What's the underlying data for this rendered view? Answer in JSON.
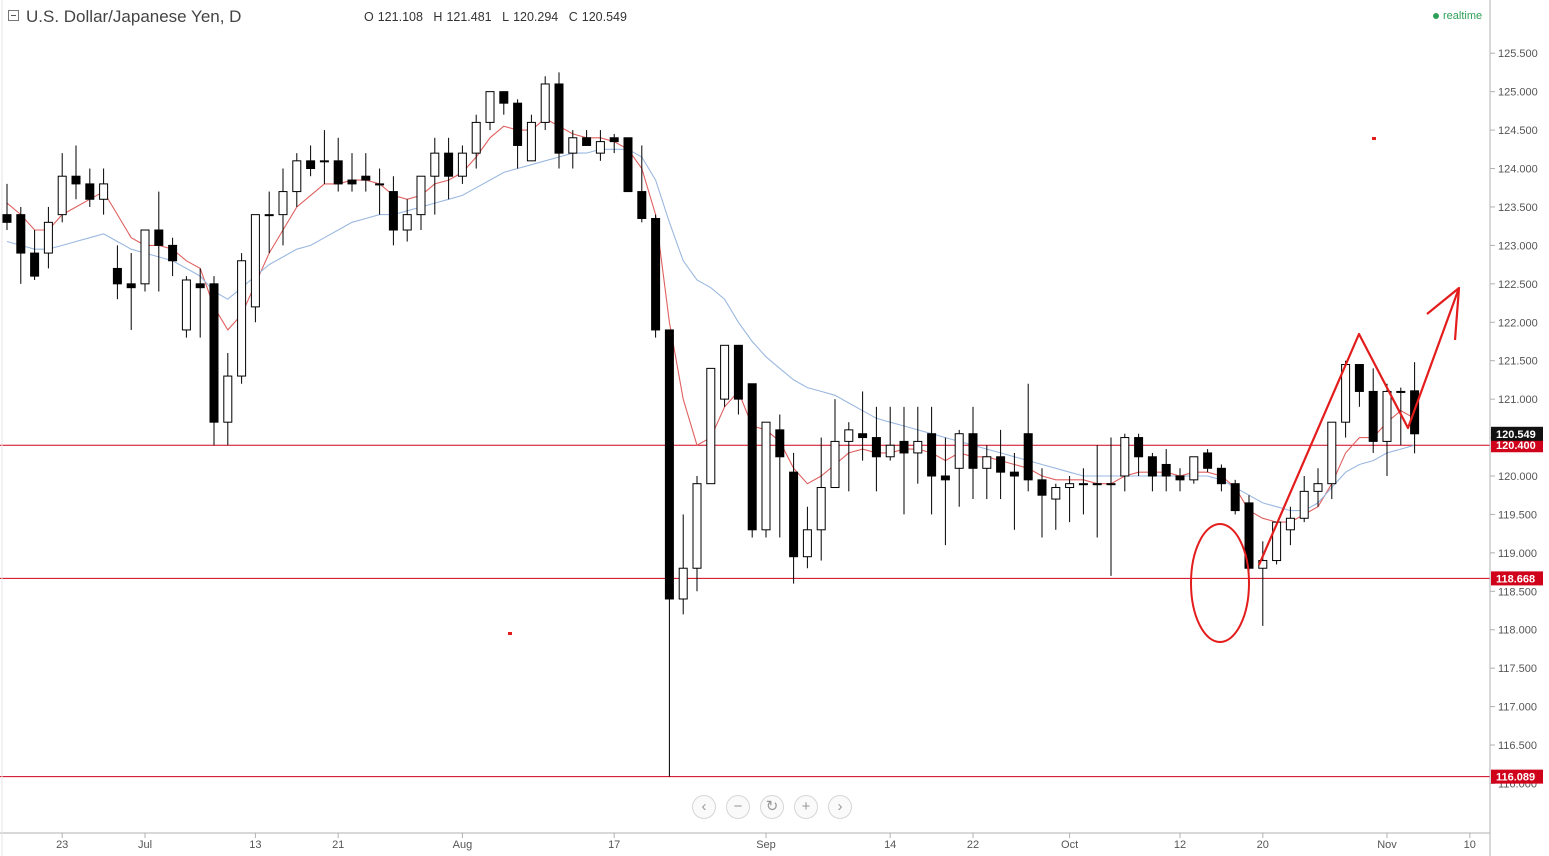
{
  "header": {
    "title": "U.S. Dollar/Japanese Yen, D",
    "ohlc": [
      {
        "key": "O",
        "value": "121.108"
      },
      {
        "key": "H",
        "value": "121.481"
      },
      {
        "key": "L",
        "value": "120.294"
      },
      {
        "key": "C",
        "value": "120.549"
      }
    ],
    "realtime_label": "realtime"
  },
  "nav_buttons": [
    {
      "name": "scroll-left-button",
      "glyph": "‹"
    },
    {
      "name": "zoom-out-button",
      "glyph": "−"
    },
    {
      "name": "reset-button",
      "glyph": "↻"
    },
    {
      "name": "zoom-in-button",
      "glyph": "+"
    },
    {
      "name": "scroll-right-button",
      "glyph": "›"
    }
  ],
  "chart_data": {
    "type": "candlestick",
    "title": "U.S. Dollar/Japanese Yen, D",
    "ylim": [
      115.85,
      125.75
    ],
    "y_ticks": [
      116.0,
      116.5,
      117.0,
      117.5,
      118.0,
      118.5,
      119.0,
      119.5,
      120.0,
      120.5,
      121.0,
      121.5,
      122.0,
      122.5,
      123.0,
      123.5,
      124.0,
      124.5,
      125.0,
      125.5
    ],
    "x_tick_labels": [
      {
        "label": "23",
        "bar": 4
      },
      {
        "label": "Jul",
        "bar": 10
      },
      {
        "label": "13",
        "bar": 18
      },
      {
        "label": "21",
        "bar": 24
      },
      {
        "label": "Aug",
        "bar": 33
      },
      {
        "label": "17",
        "bar": 44
      },
      {
        "label": "Sep",
        "bar": 55
      },
      {
        "label": "14",
        "bar": 64
      },
      {
        "label": "22",
        "bar": 70
      },
      {
        "label": "Oct",
        "bar": 77
      },
      {
        "label": "12",
        "bar": 85
      },
      {
        "label": "20",
        "bar": 91
      },
      {
        "label": "Nov",
        "bar": 100
      },
      {
        "label": "10",
        "bar": 106
      }
    ],
    "candles": [
      [
        123.4,
        123.8,
        123.2,
        123.3
      ],
      [
        123.4,
        123.5,
        122.5,
        122.9
      ],
      [
        122.9,
        123.2,
        122.55,
        122.6
      ],
      [
        122.9,
        123.5,
        122.7,
        123.3
      ],
      [
        123.4,
        124.2,
        123.3,
        123.9
      ],
      [
        123.9,
        124.3,
        123.6,
        123.8
      ],
      [
        123.8,
        124.0,
        123.5,
        123.6
      ],
      [
        123.6,
        124.0,
        123.4,
        123.8
      ],
      [
        122.7,
        123.0,
        122.3,
        122.5
      ],
      [
        122.5,
        122.9,
        121.9,
        122.45
      ],
      [
        122.5,
        123.2,
        122.4,
        123.2
      ],
      [
        123.2,
        123.7,
        122.4,
        123.0
      ],
      [
        123.0,
        123.1,
        122.6,
        122.8
      ],
      [
        121.9,
        122.6,
        121.8,
        122.55
      ],
      [
        122.5,
        122.7,
        121.8,
        122.45
      ],
      [
        122.5,
        122.6,
        120.4,
        120.7
      ],
      [
        120.7,
        121.6,
        120.4,
        121.3
      ],
      [
        121.3,
        122.9,
        121.2,
        122.8
      ],
      [
        122.2,
        123.4,
        122.0,
        123.4
      ],
      [
        123.4,
        123.7,
        122.9,
        123.4
      ],
      [
        123.4,
        124.0,
        123.0,
        123.7
      ],
      [
        123.7,
        124.2,
        123.5,
        124.1
      ],
      [
        124.1,
        124.3,
        123.9,
        124.0
      ],
      [
        124.1,
        124.5,
        123.8,
        124.1
      ],
      [
        124.1,
        124.4,
        123.7,
        123.8
      ],
      [
        123.85,
        124.2,
        123.7,
        123.8
      ],
      [
        123.9,
        124.2,
        123.7,
        123.85
      ],
      [
        123.8,
        124.0,
        123.4,
        123.8
      ],
      [
        123.7,
        123.9,
        123.0,
        123.2
      ],
      [
        123.2,
        123.6,
        123.05,
        123.4
      ],
      [
        123.4,
        123.9,
        123.2,
        123.9
      ],
      [
        123.9,
        124.4,
        123.4,
        124.2
      ],
      [
        124.2,
        124.4,
        123.6,
        123.9
      ],
      [
        123.9,
        124.3,
        123.8,
        124.2
      ],
      [
        124.2,
        124.7,
        124.0,
        124.6
      ],
      [
        124.6,
        125.0,
        124.5,
        125.0
      ],
      [
        125.0,
        125.0,
        124.7,
        124.85
      ],
      [
        124.85,
        124.9,
        124.0,
        124.3
      ],
      [
        124.1,
        124.7,
        124.1,
        124.6
      ],
      [
        124.6,
        125.2,
        124.5,
        125.1
      ],
      [
        125.1,
        125.25,
        124.0,
        124.2
      ],
      [
        124.2,
        124.5,
        124.0,
        124.4
      ],
      [
        124.4,
        124.5,
        124.3,
        124.3
      ],
      [
        124.2,
        124.5,
        124.1,
        124.35
      ],
      [
        124.4,
        124.45,
        124.2,
        124.35
      ],
      [
        124.4,
        124.4,
        123.7,
        123.7
      ],
      [
        123.7,
        124.3,
        123.3,
        123.35
      ],
      [
        123.35,
        123.4,
        121.8,
        121.9
      ],
      [
        121.9,
        121.9,
        116.09,
        118.4
      ],
      [
        118.4,
        119.5,
        118.2,
        118.8
      ],
      [
        118.8,
        120.0,
        118.5,
        119.9
      ],
      [
        119.9,
        121.4,
        119.9,
        121.4
      ],
      [
        121.0,
        121.7,
        120.9,
        121.7
      ],
      [
        121.7,
        121.7,
        120.8,
        121.0
      ],
      [
        121.2,
        121.2,
        119.2,
        119.3
      ],
      [
        119.3,
        120.7,
        119.2,
        120.7
      ],
      [
        120.6,
        120.8,
        119.2,
        120.25
      ],
      [
        120.05,
        120.3,
        118.6,
        118.95
      ],
      [
        118.95,
        119.6,
        118.8,
        119.3
      ],
      [
        119.3,
        120.5,
        118.9,
        119.85
      ],
      [
        119.85,
        121.0,
        119.85,
        120.45
      ],
      [
        120.45,
        120.7,
        119.8,
        120.6
      ],
      [
        120.55,
        121.1,
        120.2,
        120.5
      ],
      [
        120.5,
        120.9,
        119.8,
        120.25
      ],
      [
        120.25,
        120.9,
        120.2,
        120.4
      ],
      [
        120.45,
        120.9,
        119.5,
        120.3
      ],
      [
        120.3,
        120.9,
        119.9,
        120.45
      ],
      [
        120.55,
        120.9,
        119.5,
        120.0
      ],
      [
        120.0,
        120.5,
        119.1,
        119.95
      ],
      [
        120.1,
        120.6,
        119.6,
        120.55
      ],
      [
        120.55,
        120.9,
        119.7,
        120.1
      ],
      [
        120.1,
        120.4,
        119.7,
        120.25
      ],
      [
        120.25,
        120.6,
        119.7,
        120.05
      ],
      [
        120.05,
        120.3,
        119.3,
        120.0
      ],
      [
        120.55,
        121.2,
        119.8,
        119.95
      ],
      [
        119.95,
        120.1,
        119.2,
        119.75
      ],
      [
        119.7,
        119.9,
        119.3,
        119.85
      ],
      [
        119.85,
        120.0,
        119.4,
        119.9
      ],
      [
        119.9,
        120.1,
        119.5,
        119.9
      ],
      [
        119.9,
        120.4,
        119.2,
        119.9
      ],
      [
        119.9,
        120.5,
        118.7,
        119.9
      ],
      [
        120.0,
        120.55,
        119.8,
        120.5
      ],
      [
        120.5,
        120.55,
        120.0,
        120.25
      ],
      [
        120.25,
        120.3,
        119.8,
        120.0
      ],
      [
        120.15,
        120.35,
        119.8,
        120.0
      ],
      [
        120.0,
        120.1,
        119.8,
        119.95
      ],
      [
        119.95,
        120.25,
        119.9,
        120.25
      ],
      [
        120.3,
        120.35,
        120.05,
        120.1
      ],
      [
        120.1,
        120.15,
        119.8,
        119.9
      ],
      [
        119.9,
        119.95,
        119.5,
        119.55
      ],
      [
        119.65,
        119.75,
        118.6,
        118.8
      ],
      [
        118.8,
        119.15,
        118.05,
        118.9
      ],
      [
        118.9,
        119.4,
        118.85,
        119.4
      ],
      [
        119.3,
        119.6,
        119.1,
        119.45
      ],
      [
        119.45,
        120.0,
        119.4,
        119.8
      ],
      [
        119.8,
        120.1,
        119.6,
        119.9
      ],
      [
        119.9,
        120.7,
        119.7,
        120.7
      ],
      [
        120.7,
        121.5,
        120.5,
        121.45
      ],
      [
        121.45,
        121.45,
        120.9,
        121.1
      ],
      [
        121.1,
        121.4,
        120.3,
        120.45
      ],
      [
        120.45,
        121.2,
        120.0,
        121.1
      ],
      [
        121.1,
        121.15,
        120.4,
        121.1
      ],
      [
        121.108,
        121.481,
        120.294,
        120.549
      ]
    ],
    "series": [
      {
        "name": "",
        "color": "#e06060",
        "values": [
          123.55,
          123.4,
          123.2,
          123.2,
          123.4,
          123.5,
          123.6,
          123.7,
          123.4,
          123.1,
          123.0,
          123.0,
          122.95,
          122.8,
          122.7,
          122.2,
          121.9,
          122.1,
          122.5,
          122.9,
          123.2,
          123.5,
          123.65,
          123.8,
          123.8,
          123.85,
          123.85,
          123.8,
          123.65,
          123.6,
          123.65,
          123.8,
          123.85,
          123.95,
          124.15,
          124.4,
          124.55,
          124.5,
          124.5,
          124.65,
          124.55,
          124.45,
          124.4,
          124.4,
          124.35,
          124.25,
          124.0,
          123.4,
          122.0,
          121.0,
          120.4,
          120.5,
          120.9,
          121.1,
          120.65,
          120.6,
          120.45,
          120.1,
          119.9,
          120.0,
          120.15,
          120.3,
          120.35,
          120.3,
          120.3,
          120.35,
          120.35,
          120.3,
          120.2,
          120.3,
          120.25,
          120.25,
          120.2,
          120.15,
          120.1,
          120.0,
          119.95,
          119.95,
          119.95,
          119.9,
          119.9,
          120.0,
          120.05,
          120.05,
          120.05,
          120.0,
          120.05,
          120.05,
          120.0,
          119.85,
          119.55,
          119.45,
          119.4,
          119.4,
          119.5,
          119.6,
          119.9,
          120.3,
          120.5,
          120.5,
          120.7,
          120.85,
          120.75
        ]
      },
      {
        "name": "",
        "color": "#9bb8e0",
        "values": [
          123.05,
          123.0,
          122.95,
          122.95,
          123.0,
          123.05,
          123.1,
          123.15,
          123.05,
          122.95,
          122.9,
          122.85,
          122.8,
          122.7,
          122.6,
          122.4,
          122.3,
          122.45,
          122.6,
          122.75,
          122.85,
          122.95,
          123.0,
          123.1,
          123.2,
          123.3,
          123.35,
          123.4,
          123.4,
          123.45,
          123.5,
          123.55,
          123.6,
          123.65,
          123.75,
          123.85,
          123.95,
          124.0,
          124.05,
          124.1,
          124.15,
          124.2,
          124.2,
          124.25,
          124.25,
          124.25,
          124.15,
          123.85,
          123.3,
          122.8,
          122.55,
          122.45,
          122.3,
          122.0,
          121.75,
          121.55,
          121.4,
          121.25,
          121.15,
          121.1,
          121.05,
          120.95,
          120.85,
          120.75,
          120.7,
          120.65,
          120.6,
          120.55,
          120.5,
          120.45,
          120.4,
          120.35,
          120.3,
          120.25,
          120.2,
          120.15,
          120.1,
          120.05,
          120.0,
          120.0,
          120.0,
          120.0,
          120.0,
          120.0,
          120.0,
          120.0,
          120.0,
          120.0,
          119.95,
          119.85,
          119.75,
          119.65,
          119.6,
          119.55,
          119.55,
          119.65,
          119.85,
          120.05,
          120.15,
          120.2,
          120.3,
          120.35,
          120.4
        ]
      }
    ],
    "horizontal_lines": [
      {
        "value": 120.4,
        "label": "120.400",
        "color": "#d0021b"
      },
      {
        "value": 118.668,
        "label": "118.668",
        "color": "#d0021b"
      },
      {
        "value": 116.089,
        "label": "116.089",
        "color": "#d0021b"
      }
    ],
    "last_price": {
      "value": 120.549,
      "label": "120.549",
      "color": "#111111"
    },
    "colors": {
      "up_fill": "#ffffff",
      "down_fill": "#000000",
      "wick": "#000000",
      "axis": "#b0b0b0",
      "annotation": "#e31c1c"
    }
  }
}
